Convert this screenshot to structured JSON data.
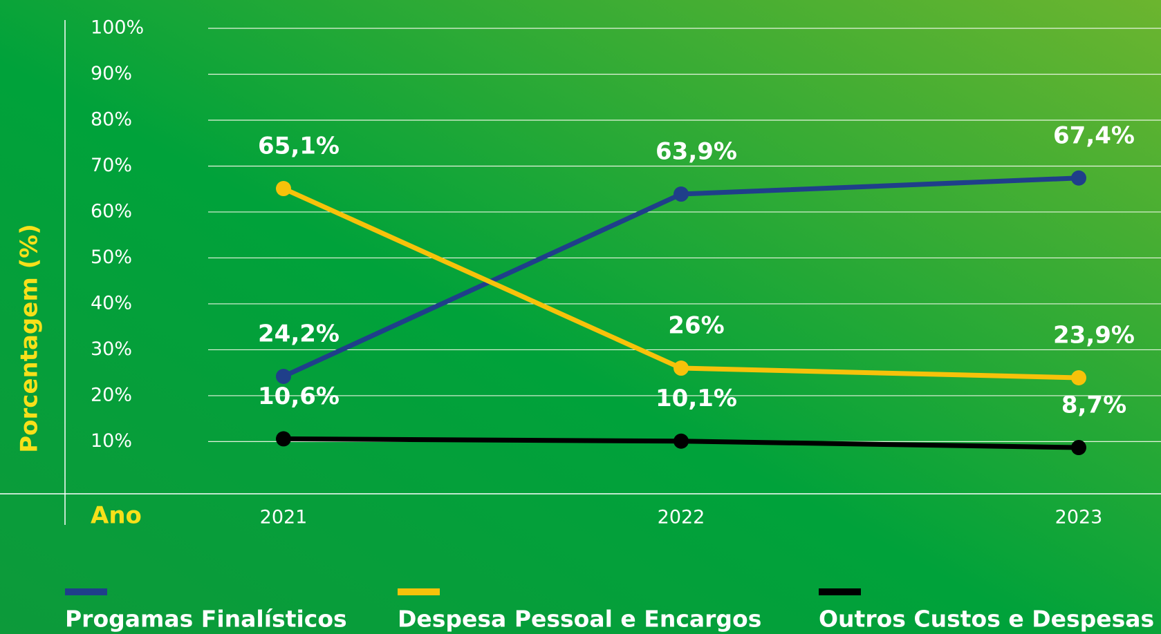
{
  "chart_data": {
    "type": "line",
    "ylabel": "Porcentagem (%)",
    "xlabel": "Ano",
    "categories": [
      "2021",
      "2022",
      "2023"
    ],
    "series": [
      {
        "name": "Progamas Finalísticos",
        "color": "#1f3f8a",
        "values": [
          24.2,
          63.9,
          67.4
        ],
        "value_labels": [
          "24,2%",
          "63,9%",
          "67,4%"
        ]
      },
      {
        "name": "Despesa Pessoal e Encargos",
        "color": "#f7c20a",
        "values": [
          65.1,
          26,
          23.9
        ],
        "value_labels": [
          "65,1%",
          "26%",
          "23,9%"
        ]
      },
      {
        "name": "Outros Custos e Despesas",
        "color": "#000000",
        "values": [
          10.6,
          10.1,
          8.7
        ],
        "value_labels": [
          "10,6%",
          "10,1%",
          "8,7%"
        ]
      }
    ],
    "ylim": [
      0,
      100
    ],
    "yticks": [
      {
        "value": 10,
        "label": "10%"
      },
      {
        "value": 20,
        "label": "20%"
      },
      {
        "value": 30,
        "label": "30%"
      },
      {
        "value": 40,
        "label": "40%"
      },
      {
        "value": 50,
        "label": "50%"
      },
      {
        "value": 60,
        "label": "60%"
      },
      {
        "value": 70,
        "label": "70%"
      },
      {
        "value": 80,
        "label": "80%"
      },
      {
        "value": 90,
        "label": "90%"
      },
      {
        "value": 100,
        "label": "100%"
      }
    ],
    "grid": true
  }
}
